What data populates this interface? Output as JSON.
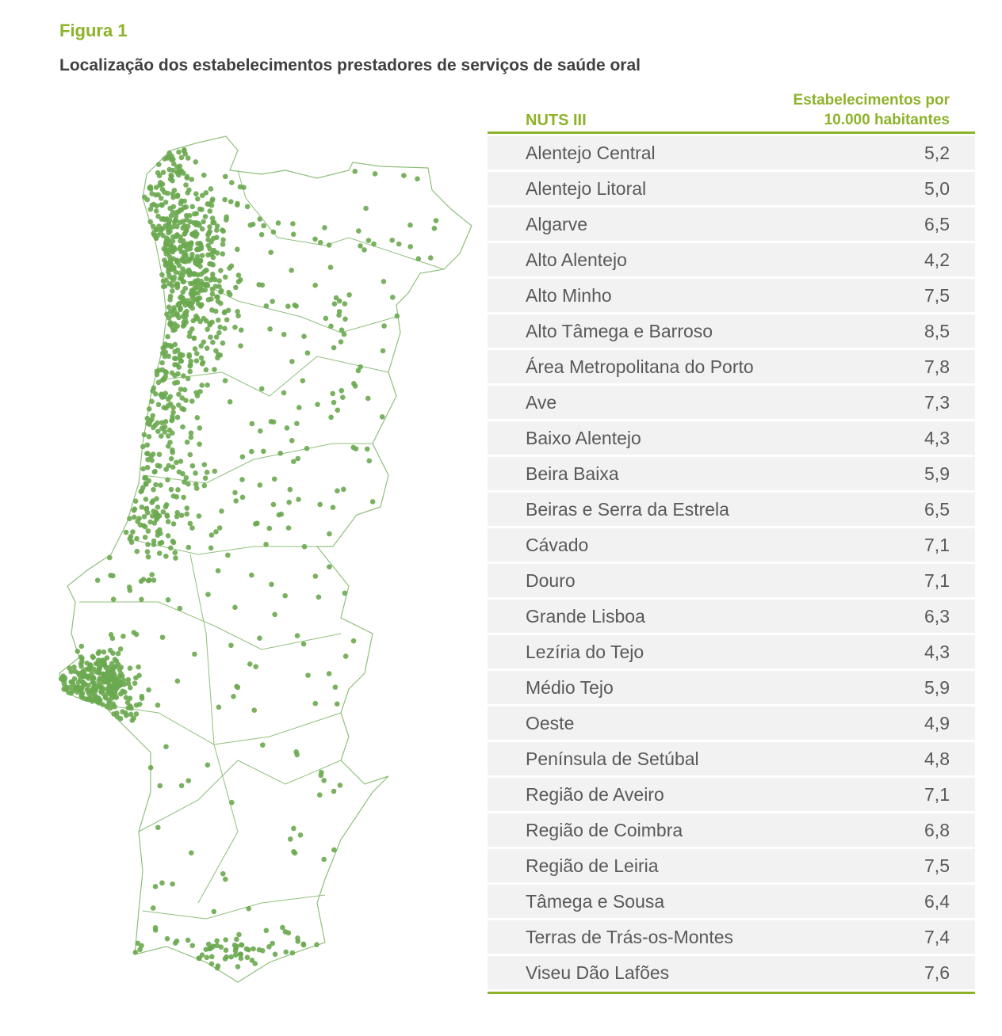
{
  "header": {
    "label": "Figura 1",
    "title": "Localização dos estabelecimentos prestadores de serviços de saúde oral"
  },
  "table": {
    "columns": [
      "NUTS III",
      "Estabelecimentos por 10.000 habitantes"
    ],
    "rows": [
      [
        "Alentejo Central",
        "5,2"
      ],
      [
        "Alentejo Litoral",
        "5,0"
      ],
      [
        "Algarve",
        "6,5"
      ],
      [
        "Alto Alentejo",
        "4,2"
      ],
      [
        "Alto Minho",
        "7,5"
      ],
      [
        "Alto Tâmega e Barroso",
        "8,5"
      ],
      [
        "Área Metropolitana do Porto",
        "7,8"
      ],
      [
        "Ave",
        "7,3"
      ],
      [
        "Baixo Alentejo",
        "4,3"
      ],
      [
        "Beira Baixa",
        "5,9"
      ],
      [
        "Beiras e Serra da Estrela",
        "6,5"
      ],
      [
        "Cávado",
        "7,1"
      ],
      [
        "Douro",
        "7,1"
      ],
      [
        "Grande Lisboa",
        "6,3"
      ],
      [
        "Lezíria do Tejo",
        "4,3"
      ],
      [
        "Médio Tejo",
        "5,9"
      ],
      [
        "Oeste",
        "4,9"
      ],
      [
        "Península de Setúbal",
        "4,8"
      ],
      [
        "Região de Aveiro",
        "7,1"
      ],
      [
        "Região de Coimbra",
        "6,8"
      ],
      [
        "Região de Leiria",
        "7,5"
      ],
      [
        "Tâmega e Sousa",
        "6,4"
      ],
      [
        "Terras de Trás-os-Montes",
        "7,4"
      ],
      [
        "Viseu Dão Lafões",
        "7,6"
      ]
    ]
  }
}
